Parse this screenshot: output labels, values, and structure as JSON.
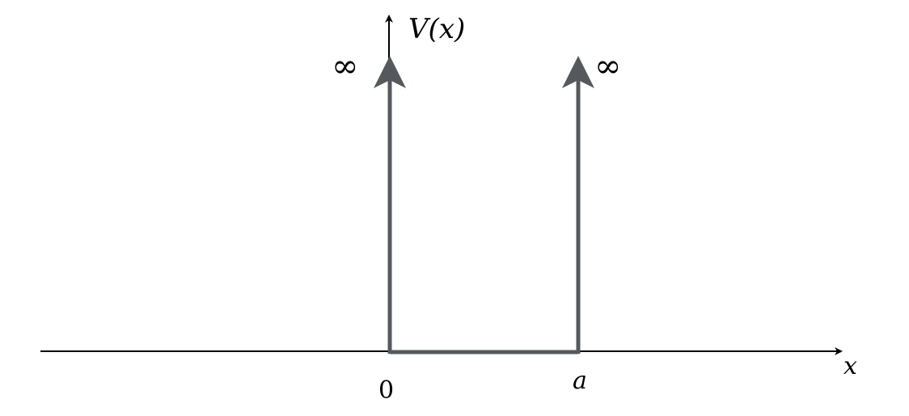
{
  "diagram": {
    "y_axis_label": "V(x)",
    "x_axis_label": "x",
    "left_wall_label": "∞",
    "right_wall_label": "∞",
    "origin_label": "0",
    "width_label": "a",
    "colors": {
      "axes": "#000000",
      "potential": "#55595e"
    }
  }
}
